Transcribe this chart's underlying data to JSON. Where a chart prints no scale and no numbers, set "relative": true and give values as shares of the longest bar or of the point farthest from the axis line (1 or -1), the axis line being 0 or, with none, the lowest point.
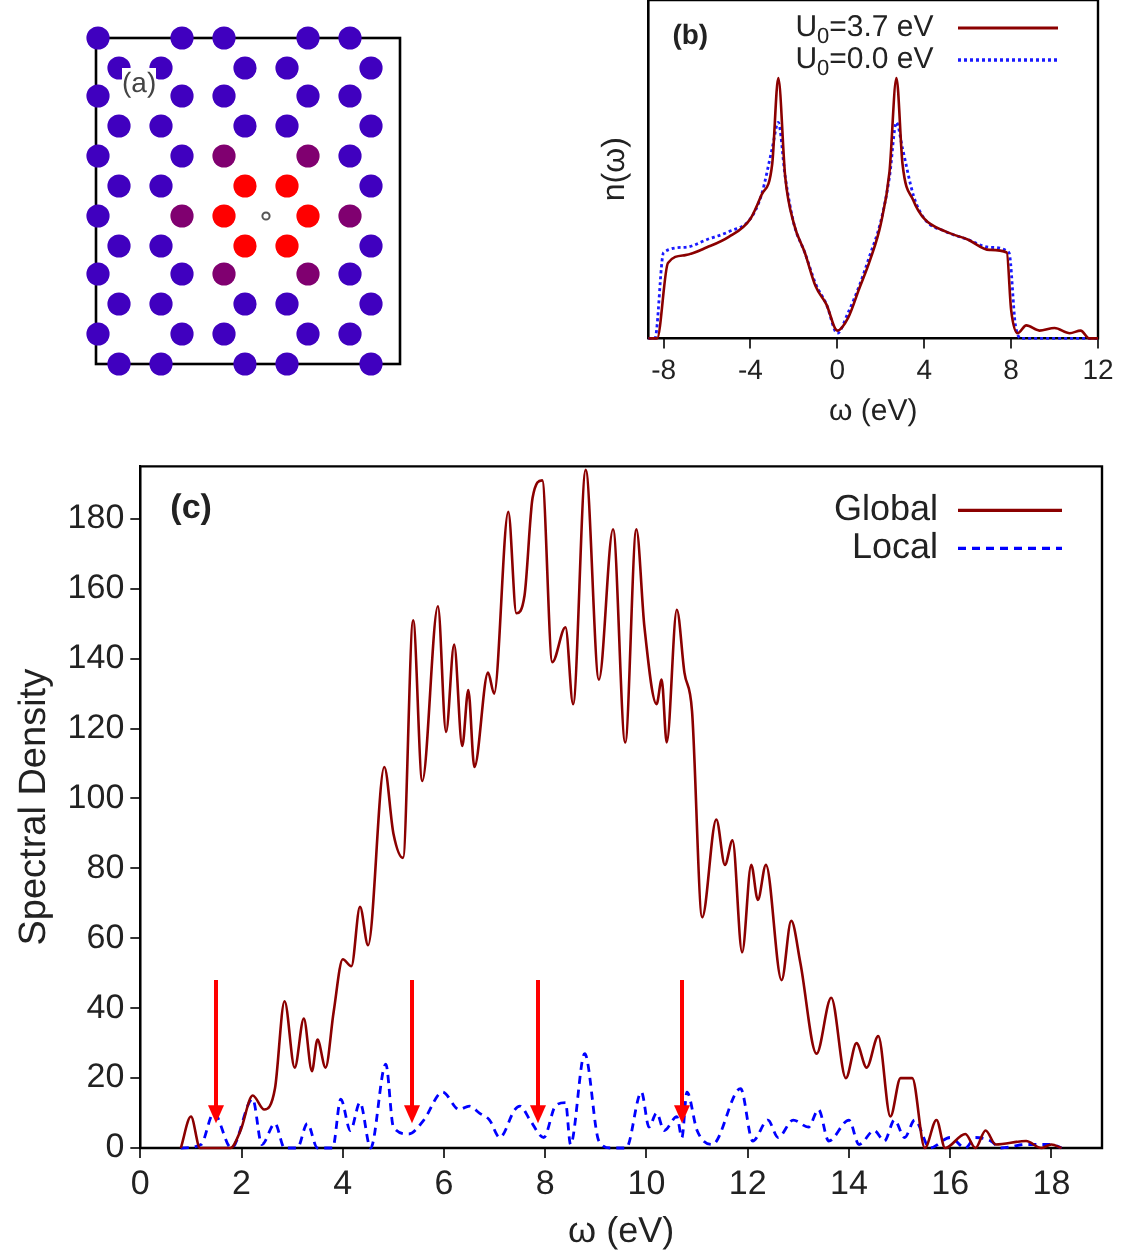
{
  "chart_data": [
    {
      "type": "other",
      "annotations": [
        "(a)"
      ]
    },
    {
      "type": "line",
      "xlabel": "ω (eV)",
      "ylabel": "n(ω)",
      "relative": true,
      "xlim": [
        -8.7,
        12
      ],
      "xticks": [
        -8,
        -4,
        0,
        4,
        8,
        12
      ],
      "legend": "top right",
      "marker": "none",
      "annotations": [
        "(b)"
      ],
      "series": [
        {
          "name": "U$_{0}$=3.7 eV",
          "color": "#8b0000",
          "line_style": "solid",
          "x": [
            -8.7,
            -8.3,
            -7.8,
            -7,
            -6,
            -5,
            -4,
            -3.5,
            -3,
            -2.72,
            -2.4,
            -2,
            -1.5,
            -1,
            -0.5,
            0,
            0.5,
            1,
            1.5,
            2,
            2.4,
            2.72,
            3,
            3.5,
            4,
            5,
            6,
            7,
            7.8,
            8,
            8.3,
            8.7,
            9.3,
            10,
            10.7,
            11.2,
            11.6,
            12
          ],
          "values": [
            0,
            0,
            0.29,
            0.32,
            0.35,
            0.39,
            0.46,
            0.55,
            0.67,
            1,
            0.62,
            0.44,
            0.33,
            0.2,
            0.13,
            0.03,
            0.08,
            0.19,
            0.3,
            0.44,
            0.64,
            1,
            0.67,
            0.53,
            0.46,
            0.41,
            0.38,
            0.34,
            0.33,
            0.11,
            0.02,
            0.05,
            0.03,
            0.04,
            0.02,
            0.03,
            0,
            0
          ]
        },
        {
          "name": "U$_{0}$=0.0 eV",
          "color": "#1a1aff",
          "line_style": "dotted",
          "x": [
            -8.7,
            -8.4,
            -8,
            -7,
            -6,
            -5,
            -4,
            -3.5,
            -3,
            -2.72,
            -2.4,
            -2,
            -1.5,
            -1,
            -0.5,
            0,
            0.5,
            1,
            1.5,
            2,
            2.4,
            2.72,
            3,
            3.5,
            4,
            5,
            6,
            7,
            7.9,
            8.2,
            8.5,
            12
          ],
          "values": [
            0,
            0,
            0.33,
            0.35,
            0.38,
            0.41,
            0.46,
            0.55,
            0.73,
            0.83,
            0.62,
            0.44,
            0.33,
            0.21,
            0.13,
            0.02,
            0.1,
            0.2,
            0.32,
            0.45,
            0.62,
            0.83,
            0.73,
            0.55,
            0.46,
            0.41,
            0.38,
            0.35,
            0.33,
            0.05,
            0,
            0
          ]
        }
      ]
    },
    {
      "type": "line",
      "xlabel": "ω (eV)",
      "ylabel": "Spectral Density",
      "xlim": [
        0,
        19
      ],
      "ylim": [
        0,
        195
      ],
      "xticks": [
        0,
        2,
        4,
        6,
        8,
        10,
        12,
        14,
        16,
        18
      ],
      "yticks": [
        0,
        20,
        40,
        60,
        80,
        100,
        120,
        140,
        160,
        180
      ],
      "legend": "top right",
      "marker": "none",
      "annotations": [
        "(c)"
      ],
      "series": [
        {
          "name": "Global",
          "color": "#8b0000",
          "line_style": "solid",
          "x": [
            0.8,
            1.0,
            1.18,
            1.4,
            1.78,
            1.98,
            2.22,
            2.45,
            2.66,
            2.85,
            3.05,
            3.23,
            3.39,
            3.5,
            3.66,
            3.82,
            4.0,
            4.17,
            4.34,
            4.5,
            4.82,
            5.0,
            5.19,
            5.39,
            5.57,
            5.88,
            6.04,
            6.2,
            6.36,
            6.48,
            6.6,
            6.87,
            6.99,
            7.27,
            7.43,
            7.59,
            7.75,
            7.94,
            8.14,
            8.4,
            8.55,
            8.8,
            9.06,
            9.34,
            9.58,
            9.8,
            9.96,
            10.2,
            10.3,
            10.4,
            10.6,
            10.75,
            10.9,
            11.1,
            11.38,
            11.55,
            11.7,
            11.89,
            12.07,
            12.2,
            12.36,
            12.67,
            12.86,
            13.04,
            13.36,
            13.65,
            13.94,
            14.15,
            14.35,
            14.58,
            14.82,
            15.02,
            15.25,
            15.5,
            15.73,
            15.9,
            16.3,
            16.5,
            16.7,
            16.9,
            17.5,
            17.8,
            18.0,
            18.2
          ],
          "values": [
            0,
            9,
            0,
            0,
            0,
            5,
            15,
            11,
            17,
            42,
            23,
            37,
            22,
            31,
            23,
            39,
            54,
            52,
            69,
            58,
            109,
            90,
            83,
            151,
            105,
            155,
            119,
            144,
            115,
            131,
            109,
            136,
            130,
            182,
            153,
            158,
            186,
            191,
            139,
            149,
            127,
            194,
            134,
            177,
            116,
            177,
            149,
            127,
            134,
            116,
            154,
            136,
            125,
            66,
            94,
            81,
            88,
            56,
            81,
            71,
            81,
            48,
            65,
            53,
            27,
            43,
            20,
            30,
            23,
            32,
            9,
            20,
            20,
            0,
            8,
            0,
            4,
            0,
            5,
            1,
            2,
            0,
            1,
            0
          ]
        },
        {
          "name": "Local",
          "color": "#0000ff",
          "line_style": "dashed",
          "x": [
            0.8,
            1.2,
            1.45,
            1.8,
            2.22,
            2.4,
            2.66,
            2.85,
            3.1,
            3.3,
            3.5,
            3.8,
            3.96,
            4.15,
            4.34,
            4.55,
            4.85,
            5.0,
            5.3,
            5.6,
            5.97,
            6.3,
            6.5,
            6.7,
            6.9,
            7.1,
            7.4,
            7.5,
            7.7,
            7.97,
            8.2,
            8.4,
            8.5,
            8.78,
            9.06,
            9.3,
            9.6,
            9.9,
            10.05,
            10.2,
            10.35,
            10.6,
            10.7,
            10.8,
            11.0,
            11.3,
            11.86,
            12.1,
            12.4,
            12.6,
            12.9,
            13.2,
            13.4,
            13.6,
            14.0,
            14.2,
            14.5,
            14.7,
            14.9,
            15.1,
            15.3,
            15.6,
            16.0,
            16.3,
            16.5,
            16.8,
            17.0,
            17.5,
            18.0,
            18.2
          ],
          "values": [
            0,
            1,
            10,
            0,
            14,
            1,
            7,
            0,
            0,
            7,
            0,
            0,
            14,
            5,
            13,
            0,
            24,
            6,
            4,
            8,
            16,
            11,
            12,
            10,
            8,
            3,
            11,
            12,
            8,
            3,
            12,
            13,
            1,
            27,
            2,
            0,
            0,
            16,
            6,
            10,
            5,
            9,
            3,
            16,
            5,
            1,
            17,
            2,
            8,
            3,
            8,
            6,
            11,
            2,
            8,
            1,
            5,
            2,
            8,
            3,
            8,
            0,
            3,
            0,
            3,
            2,
            0,
            1,
            1,
            0
          ]
        }
      ]
    }
  ]
}
